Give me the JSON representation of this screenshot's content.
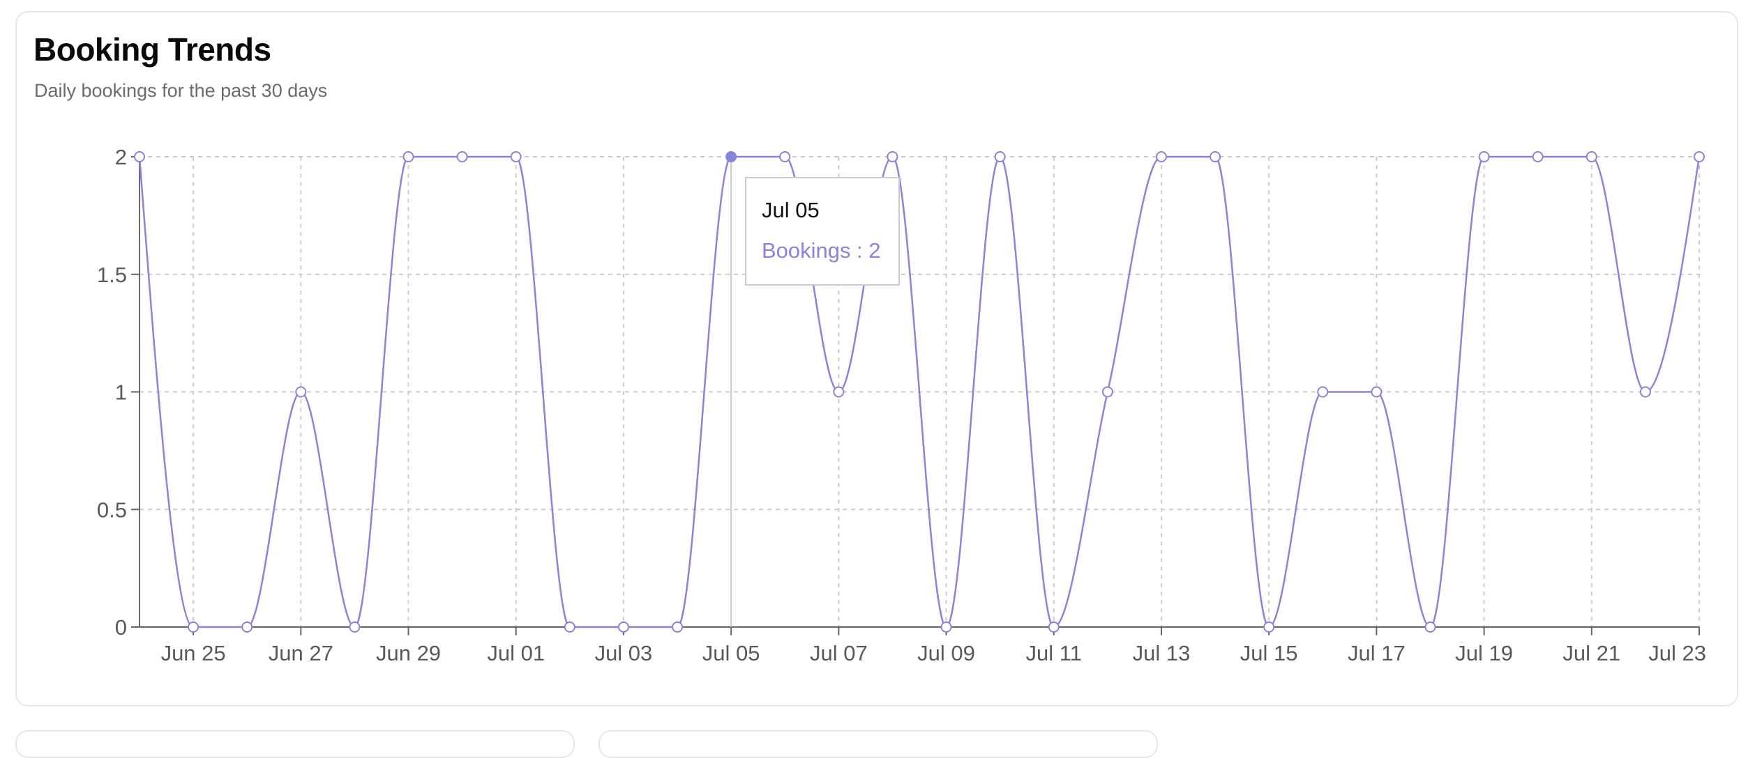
{
  "card": {
    "title": "Booking Trends",
    "subtitle": "Daily bookings for the past 30 days"
  },
  "tooltip": {
    "date": "Jul 05",
    "series_label": "Bookings",
    "value": 2
  },
  "colors": {
    "line": "#8884d8",
    "grid": "#cccccc",
    "axis": "#666666",
    "text": "#595959"
  },
  "chart_data": {
    "type": "line",
    "curve": "monotone",
    "title": "Booking Trends",
    "subtitle": "Daily bookings for the past 30 days",
    "xlabel": "",
    "ylabel": "",
    "x": [
      "Jun 24",
      "Jun 25",
      "Jun 26",
      "Jun 27",
      "Jun 28",
      "Jun 29",
      "Jun 30",
      "Jul 01",
      "Jul 02",
      "Jul 03",
      "Jul 04",
      "Jul 05",
      "Jul 06",
      "Jul 07",
      "Jul 08",
      "Jul 09",
      "Jul 10",
      "Jul 11",
      "Jul 12",
      "Jul 13",
      "Jul 14",
      "Jul 15",
      "Jul 16",
      "Jul 17",
      "Jul 18",
      "Jul 19",
      "Jul 20",
      "Jul 21",
      "Jul 22",
      "Jul 23"
    ],
    "x_tick_labels": [
      "Jun 25",
      "Jun 27",
      "Jun 29",
      "Jul 01",
      "Jul 03",
      "Jul 05",
      "Jul 07",
      "Jul 09",
      "Jul 11",
      "Jul 13",
      "Jul 15",
      "Jul 17",
      "Jul 19",
      "Jul 21",
      "Jul 23"
    ],
    "series": [
      {
        "name": "Bookings",
        "values": [
          2,
          0,
          0,
          1,
          0,
          2,
          2,
          2,
          0,
          0,
          0,
          2,
          2,
          1,
          2,
          0,
          2,
          0,
          1,
          2,
          2,
          0,
          1,
          1,
          0,
          2,
          2,
          2,
          1,
          2
        ]
      }
    ],
    "y_ticks": [
      "0",
      "0.5",
      "1",
      "1.5",
      "2"
    ],
    "ylim": [
      0,
      2
    ],
    "grid": true,
    "grid_style": "dashed",
    "active_index": 11
  }
}
